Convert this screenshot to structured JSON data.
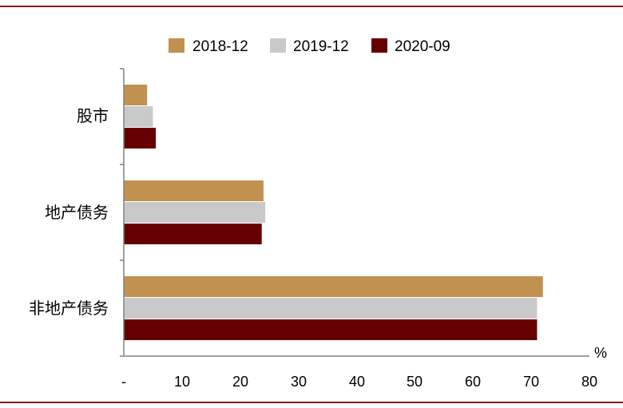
{
  "chart_data": {
    "type": "bar",
    "orientation": "horizontal",
    "categories": [
      "股市",
      "地产债务",
      "非地产债务"
    ],
    "series": [
      {
        "name": "2018-12",
        "color": "#C1914F",
        "values": [
          4,
          24,
          72
        ]
      },
      {
        "name": "2019-12",
        "color": "#C9C9C9",
        "values": [
          5,
          24.3,
          71
        ]
      },
      {
        "name": "2020-09",
        "color": "#660000",
        "values": [
          5.5,
          23.7,
          71
        ]
      }
    ],
    "xlim": [
      0,
      80
    ],
    "x_ticks": [
      "-",
      "10",
      "20",
      "30",
      "40",
      "50",
      "60",
      "70",
      "80"
    ],
    "x_unit": "%",
    "legend_position": "top",
    "grid": false
  },
  "frame": {
    "border_color": "#8B1A1A"
  }
}
